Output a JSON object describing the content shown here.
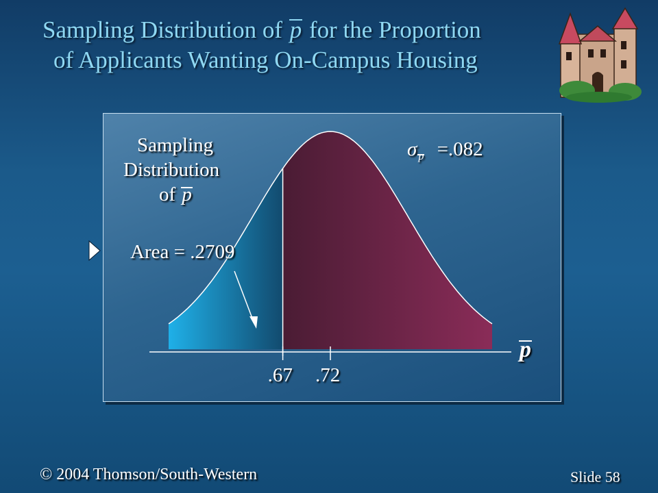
{
  "slide": {
    "title_part1": "Sampling Distribution of",
    "title_symbol": "p",
    "title_part2": "for the Proportion",
    "title_line2": "of Applicants Wanting On-Campus Housing"
  },
  "diagram": {
    "dist_label_line1": "Sampling",
    "dist_label_line2": "Distribution",
    "dist_label_of": "of",
    "dist_label_symbol": "p",
    "sigma_symbol": "σ",
    "sigma_sub": "p",
    "sigma_value": "=.082",
    "area_label": "Area = .2709",
    "axis_symbol": "p",
    "tick_labels": [
      ".67",
      ".72"
    ],
    "tick_values": [
      0.67,
      0.72
    ],
    "mean": 0.72,
    "std_error": 0.082,
    "area_left": 0.2709,
    "x_range": [
      0.55,
      0.89
    ],
    "colors": {
      "curve_fill": "#7a2148",
      "area_fill": "#1a9ad2",
      "curve_line": "#ffffff",
      "title": "#8fd8f2"
    }
  },
  "footer": {
    "copyright": "© 2004  Thomson/South-Western",
    "slide_label": "Slide",
    "slide_number": "58"
  }
}
